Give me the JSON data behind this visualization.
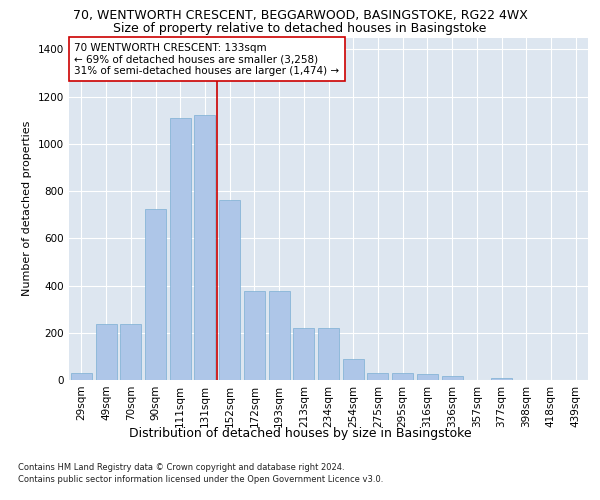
{
  "title1": "70, WENTWORTH CRESCENT, BEGGARWOOD, BASINGSTOKE, RG22 4WX",
  "title2": "Size of property relative to detached houses in Basingstoke",
  "xlabel": "Distribution of detached houses by size in Basingstoke",
  "ylabel": "Number of detached properties",
  "categories": [
    "29sqm",
    "49sqm",
    "70sqm",
    "90sqm",
    "111sqm",
    "131sqm",
    "152sqm",
    "172sqm",
    "193sqm",
    "213sqm",
    "234sqm",
    "254sqm",
    "275sqm",
    "295sqm",
    "316sqm",
    "336sqm",
    "357sqm",
    "377sqm",
    "398sqm",
    "418sqm",
    "439sqm"
  ],
  "values": [
    30,
    235,
    235,
    725,
    1110,
    1120,
    760,
    375,
    375,
    220,
    220,
    90,
    30,
    30,
    25,
    18,
    0,
    10,
    0,
    0,
    0
  ],
  "bar_color": "#aec6e8",
  "bar_edge_color": "#7bafd4",
  "vline_x": 5.5,
  "vline_color": "#cc0000",
  "annotation_text": "70 WENTWORTH CRESCENT: 133sqm\n← 69% of detached houses are smaller (3,258)\n31% of semi-detached houses are larger (1,474) →",
  "annotation_box_color": "#ffffff",
  "annotation_box_edge": "#cc0000",
  "footnote1": "Contains HM Land Registry data © Crown copyright and database right 2024.",
  "footnote2": "Contains public sector information licensed under the Open Government Licence v3.0.",
  "ylim": [
    0,
    1450
  ],
  "yticks": [
    0,
    200,
    400,
    600,
    800,
    1000,
    1200,
    1400
  ],
  "background_color": "#dde6f0",
  "grid_color": "#ffffff",
  "title1_fontsize": 9,
  "title2_fontsize": 9,
  "xlabel_fontsize": 9,
  "ylabel_fontsize": 8,
  "tick_fontsize": 7.5,
  "annot_fontsize": 7.5,
  "footnote_fontsize": 6.0
}
